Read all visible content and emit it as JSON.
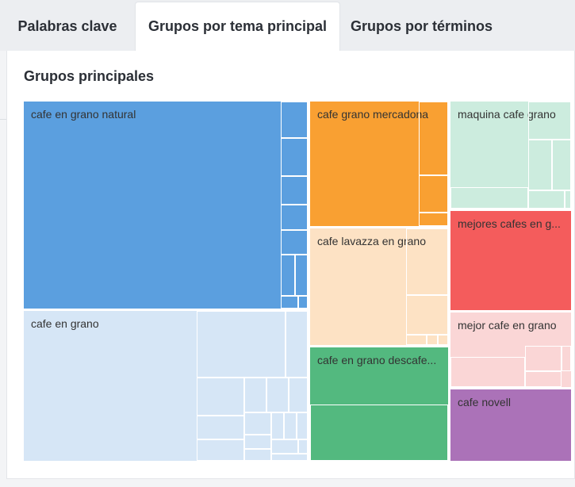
{
  "tabs": [
    {
      "label": "Palabras clave",
      "active": false
    },
    {
      "label": "Grupos por tema principal",
      "active": true
    },
    {
      "label": "Grupos por términos",
      "active": false
    }
  ],
  "section": {
    "title": "Grupos principales"
  },
  "chart_data": {
    "type": "treemap",
    "groups": [
      {
        "label": "cafe en grano natural",
        "color": "#5b9fdf"
      },
      {
        "label": "cafe en grano",
        "color": "#d6e6f6"
      },
      {
        "label": "cafe grano mercadona",
        "color": "#f9a032"
      },
      {
        "label": "cafe lavazza en grano",
        "color": "#fde2c4"
      },
      {
        "label": "cafe en grano descafe...",
        "color": "#53b97f"
      },
      {
        "label": "maquina cafe grano",
        "color": "#ccecde"
      },
      {
        "label": "mejores cafes en g...",
        "color": "#f45c5c"
      },
      {
        "label": "mejor cafe en grano",
        "color": "#fad6d6"
      },
      {
        "label": "cafe novell",
        "color": "#ab72b8"
      }
    ]
  }
}
